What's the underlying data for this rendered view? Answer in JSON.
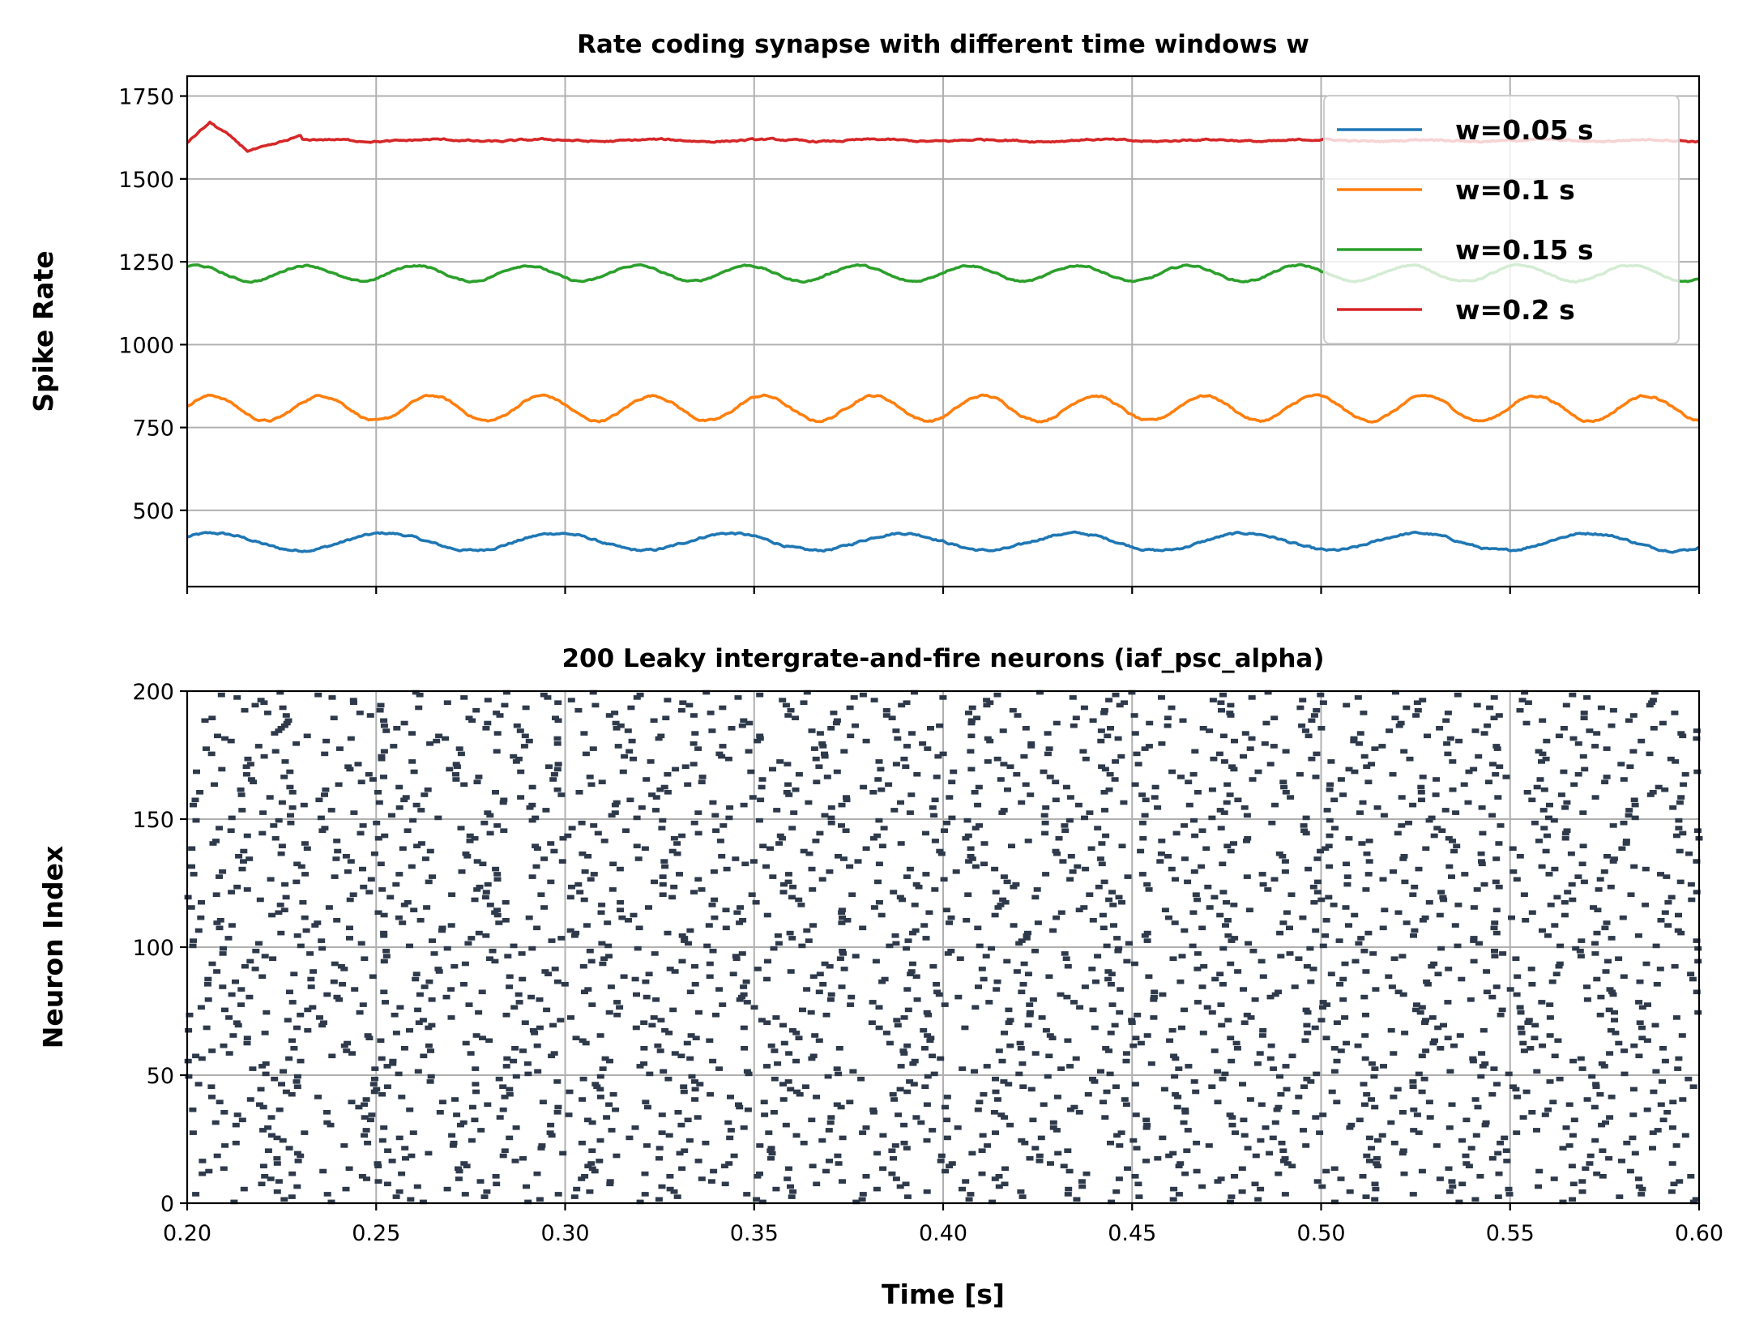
{
  "colors": {
    "series": [
      "#1f77b4",
      "#ff7f0e",
      "#2ca02c",
      "#d62728"
    ],
    "raster": "#2e3a4b",
    "grid": "#b0b0b0"
  },
  "chart_data": [
    {
      "type": "line",
      "title": "Rate coding synapse with different time windows w",
      "xlabel": "",
      "ylabel": "Spike Rate",
      "xlim": [
        0.2,
        0.6
      ],
      "ylim": [
        270,
        1810
      ],
      "yticks": [
        500,
        750,
        1000,
        1250,
        1500,
        1750
      ],
      "ytick_labels": [
        "500",
        "750",
        "1000",
        "1250",
        "1500",
        "1750"
      ],
      "grid": true,
      "legend": "top-right",
      "series": [
        {
          "name": "w=0.05 s",
          "mean": 405,
          "amplitude": 26,
          "period": 0.0455,
          "phase": 0.6,
          "noise": 5
        },
        {
          "name": "w=0.1 s",
          "mean": 808,
          "amplitude": 38,
          "period": 0.0292,
          "phase": 0.2,
          "noise": 5
        },
        {
          "name": "w=0.15 s",
          "mean": 1215,
          "amplitude": 24,
          "period": 0.0292,
          "phase": 1.1,
          "noise": 4
        },
        {
          "name": "w=0.2 s",
          "mean": 1616,
          "amplitude": 3,
          "period": 0.0292,
          "phase": 0.0,
          "noise": 4,
          "transient": [
            [
              0.2,
              1610
            ],
            [
              0.206,
              1670
            ],
            [
              0.21,
              1640
            ],
            [
              0.216,
              1585
            ],
            [
              0.222,
              1600
            ],
            [
              0.23,
              1630
            ]
          ]
        }
      ]
    },
    {
      "type": "scatter",
      "title": "200 Leaky intergrate-and-fire neurons (iaf_psc_alpha)",
      "xlabel": "Time [s]",
      "ylabel": "Neuron Index",
      "xlim": [
        0.2,
        0.6
      ],
      "ylim": [
        0,
        200
      ],
      "xticks": [
        0.2,
        0.25,
        0.3,
        0.35,
        0.4,
        0.45,
        0.5,
        0.55,
        0.6
      ],
      "xtick_labels": [
        "0.20",
        "0.25",
        "0.30",
        "0.35",
        "0.40",
        "0.45",
        "0.50",
        "0.55",
        "0.60"
      ],
      "yticks": [
        0,
        50,
        100,
        150,
        200
      ],
      "ytick_labels": [
        "0",
        "50",
        "100",
        "150",
        "200"
      ],
      "grid": true,
      "marker": "dash",
      "neurons": 200,
      "mean_interspike_interval": 0.0292
    }
  ]
}
